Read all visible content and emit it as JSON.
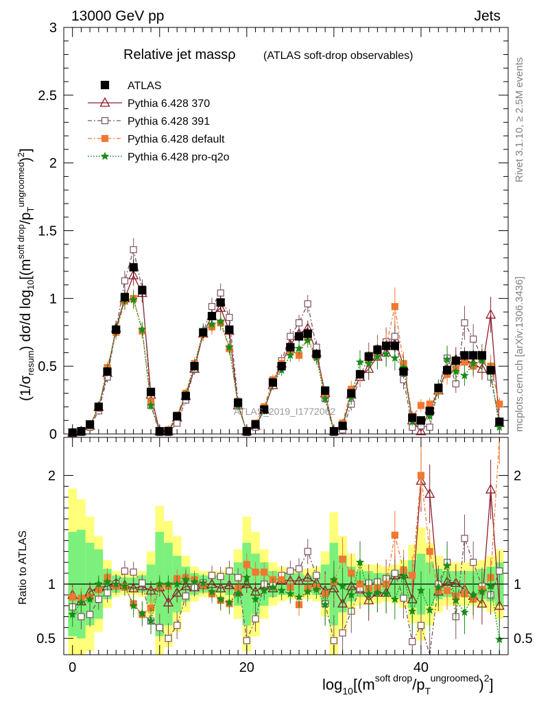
{
  "header": {
    "energy": "13000 GeV pp",
    "category": "Jets",
    "title": "Relative jet massρ",
    "subtitle": "(ATLAS soft-drop observables)",
    "rivet": "Rivet 3.1.10, ≥ 2.5M events",
    "mcplots": "mcplots.cern.ch [arXiv:1306.3436]",
    "watermark": "ATLAS_2019_I1772062"
  },
  "axes": {
    "ylabel_main": "(1/σresum) dσ/d log10[(msoft drop/pTungroomed)2]",
    "ylabel_ratio": "Ratio to ATLAS",
    "xlabel": "log10[(msoft drop/pTungroomed)2]"
  },
  "colors": {
    "ATLAS": "#000000",
    "p370": "#8b1a28",
    "p391": "#7a5060",
    "pdef": "#f07830",
    "pq2o": "#1a8c1a",
    "band_green": "#7cf07c",
    "band_yellow": "#ffff7a"
  },
  "chart_data": [
    {
      "type": "line",
      "panel": "main",
      "xlim": [
        -1,
        50
      ],
      "ylim": [
        0,
        3
      ],
      "yticks": [
        0,
        0.5,
        1,
        1.5,
        2,
        2.5,
        3
      ],
      "x": [
        0,
        1,
        2,
        3,
        4,
        5,
        6,
        7,
        8,
        9,
        10,
        11,
        12,
        13,
        14,
        15,
        16,
        17,
        18,
        19,
        20,
        21,
        22,
        23,
        24,
        25,
        26,
        27,
        28,
        29,
        30,
        31,
        32,
        33,
        34,
        35,
        36,
        37,
        38,
        39,
        40,
        41,
        42,
        43,
        44,
        45,
        46,
        47,
        48,
        49
      ],
      "series": [
        {
          "name": "ATLAS",
          "key": "ATLAS",
          "marker": "square-filled",
          "values": [
            0.01,
            0.02,
            0.07,
            0.2,
            0.46,
            0.77,
            1.01,
            1.23,
            1.06,
            0.31,
            0.02,
            0.02,
            0.13,
            0.28,
            0.5,
            0.75,
            0.87,
            0.97,
            0.77,
            0.23,
            0.02,
            0.07,
            0.18,
            0.38,
            0.5,
            0.64,
            0.72,
            0.74,
            0.59,
            0.32,
            0.02,
            0.06,
            0.3,
            0.44,
            0.57,
            0.62,
            0.65,
            0.65,
            0.46,
            0.12,
            0.1,
            0.17,
            0.34,
            0.47,
            0.54,
            0.58,
            0.58,
            0.58,
            0.47,
            0.09
          ]
        },
        {
          "name": "Pythia 6.428 370",
          "key": "p370",
          "marker": "triangle-open",
          "values": [
            0.01,
            0.02,
            0.06,
            0.2,
            0.45,
            0.78,
            1.0,
            1.17,
            1.04,
            0.29,
            0.02,
            0.02,
            0.12,
            0.28,
            0.48,
            0.74,
            0.87,
            0.93,
            0.76,
            0.21,
            0.02,
            0.06,
            0.18,
            0.36,
            0.52,
            0.66,
            0.74,
            0.78,
            0.6,
            0.3,
            0.02,
            0.06,
            0.29,
            0.42,
            0.48,
            0.57,
            0.6,
            0.7,
            0.5,
            0.1,
            0.02,
            0.18,
            0.32,
            0.48,
            0.55,
            0.55,
            0.52,
            0.48,
            0.88,
            0.08
          ]
        },
        {
          "name": "Pythia 6.428 391",
          "key": "p391",
          "marker": "square-open",
          "values": [
            0.01,
            0.01,
            0.05,
            0.17,
            0.42,
            0.77,
            1.13,
            1.36,
            1.07,
            0.21,
            0.01,
            0.01,
            0.08,
            0.25,
            0.48,
            0.75,
            0.94,
            1.04,
            0.86,
            0.24,
            0.01,
            0.05,
            0.18,
            0.38,
            0.54,
            0.72,
            0.82,
            0.96,
            0.64,
            0.26,
            0.01,
            0.03,
            0.22,
            0.42,
            0.58,
            0.63,
            0.68,
            0.72,
            0.4,
            0.05,
            0.06,
            0.05,
            0.34,
            0.56,
            0.37,
            0.82,
            0.7,
            0.57,
            0.42,
            0.09
          ]
        },
        {
          "name": "Pythia 6.428 default",
          "key": "pdef",
          "marker": "square-filled",
          "values": [
            0.01,
            0.02,
            0.06,
            0.19,
            0.49,
            0.75,
            0.98,
            1.0,
            0.76,
            0.24,
            0.02,
            0.03,
            0.14,
            0.3,
            0.52,
            0.74,
            0.79,
            0.82,
            0.63,
            0.22,
            0.02,
            0.08,
            0.2,
            0.4,
            0.52,
            0.62,
            0.58,
            0.71,
            0.57,
            0.29,
            0.02,
            0.08,
            0.33,
            0.44,
            0.55,
            0.6,
            0.65,
            0.94,
            0.52,
            0.13,
            0.21,
            0.22,
            0.32,
            0.44,
            0.48,
            0.53,
            0.5,
            0.55,
            0.5,
            0.22
          ]
        },
        {
          "name": "Pythia 6.428 pro-q2o",
          "key": "pq2o",
          "marker": "star-filled",
          "values": [
            0.01,
            0.02,
            0.06,
            0.2,
            0.47,
            0.77,
            0.99,
            0.99,
            0.77,
            0.21,
            0.02,
            0.02,
            0.13,
            0.29,
            0.51,
            0.76,
            0.81,
            0.83,
            0.64,
            0.21,
            0.02,
            0.06,
            0.17,
            0.37,
            0.47,
            0.58,
            0.63,
            0.69,
            0.56,
            0.26,
            0.02,
            0.06,
            0.27,
            0.53,
            0.52,
            0.57,
            0.59,
            0.56,
            0.49,
            0.09,
            0.09,
            0.13,
            0.33,
            0.55,
            0.46,
            0.43,
            0.52,
            0.54,
            0.46,
            0.05
          ]
        }
      ]
    },
    {
      "type": "line",
      "panel": "ratio",
      "xlim": [
        -1,
        50
      ],
      "ylim": [
        0.35,
        2.35
      ],
      "yticks": [
        0.5,
        1,
        2
      ],
      "xticks": [
        0,
        20,
        40
      ],
      "x": [
        0,
        1,
        2,
        3,
        4,
        5,
        6,
        7,
        8,
        9,
        10,
        11,
        12,
        13,
        14,
        15,
        16,
        17,
        18,
        19,
        20,
        21,
        22,
        23,
        24,
        25,
        26,
        27,
        28,
        29,
        30,
        31,
        32,
        33,
        34,
        35,
        36,
        37,
        38,
        39,
        40,
        41,
        42,
        43,
        44,
        45,
        46,
        47,
        48,
        49
      ],
      "bands": {
        "green": [
          0.48,
          0.5,
          0.38,
          0.32,
          0.14,
          0.08,
          0.06,
          0.06,
          0.08,
          0.18,
          0.48,
          0.38,
          0.26,
          0.16,
          0.1,
          0.08,
          0.08,
          0.08,
          0.1,
          0.2,
          0.38,
          0.28,
          0.2,
          0.12,
          0.1,
          0.1,
          0.1,
          0.08,
          0.1,
          0.18,
          0.38,
          0.26,
          0.16,
          0.12,
          0.12,
          0.1,
          0.1,
          0.12,
          0.14,
          0.22,
          0.28,
          0.2,
          0.14,
          0.12,
          0.12,
          0.12,
          0.12,
          0.14,
          0.16,
          0.2
        ],
        "yellow": [
          0.88,
          0.78,
          0.62,
          0.44,
          0.22,
          0.12,
          0.1,
          0.1,
          0.12,
          0.3,
          0.72,
          0.58,
          0.44,
          0.26,
          0.16,
          0.12,
          0.12,
          0.12,
          0.16,
          0.32,
          0.62,
          0.48,
          0.32,
          0.2,
          0.16,
          0.14,
          0.14,
          0.14,
          0.16,
          0.3,
          0.66,
          0.44,
          0.28,
          0.2,
          0.18,
          0.18,
          0.16,
          0.18,
          0.22,
          0.36,
          0.52,
          0.38,
          0.26,
          0.2,
          0.2,
          0.2,
          0.2,
          0.22,
          0.26,
          0.32
        ]
      },
      "series": [
        {
          "name": "Pythia 6.428 370",
          "key": "p370",
          "marker": "triangle-open",
          "values": [
            0.9,
            0.84,
            0.93,
            0.97,
            0.98,
            1.01,
            0.99,
            0.96,
            0.98,
            0.94,
            0.97,
            0.83,
            0.92,
            0.98,
            0.97,
            0.99,
            1.0,
            0.96,
            0.99,
            0.93,
            1.0,
            0.93,
            0.99,
            0.96,
            1.04,
            1.03,
            1.03,
            1.06,
            1.01,
            0.94,
            0.96,
            0.82,
            0.98,
            0.95,
            0.85,
            0.92,
            0.92,
            1.08,
            1.09,
            0.86,
            1.95,
            1.83,
            0.93,
            1.02,
            1.01,
            0.95,
            0.89,
            0.82,
            1.87,
            0.8
          ]
        },
        {
          "name": "Pythia 6.428 391",
          "key": "p391",
          "marker": "square-open",
          "values": [
            0.79,
            0.7,
            0.72,
            0.86,
            0.92,
            1.0,
            1.12,
            1.11,
            1.01,
            0.66,
            0.6,
            0.5,
            0.62,
            0.89,
            0.97,
            1.01,
            1.08,
            1.07,
            1.12,
            1.06,
            0.48,
            0.68,
            1.0,
            1.0,
            1.08,
            1.12,
            1.14,
            1.3,
            1.08,
            0.82,
            0.48,
            0.55,
            0.75,
            0.96,
            1.01,
            1.02,
            1.05,
            1.1,
            0.87,
            0.47,
            0.62,
            0.3,
            1.0,
            1.2,
            0.7,
            1.42,
            1.2,
            0.98,
            0.9,
            1.12
          ]
        },
        {
          "name": "Pythia 6.428 default",
          "key": "pdef",
          "marker": "square-filled",
          "values": [
            0.88,
            0.87,
            0.88,
            0.95,
            1.06,
            0.98,
            0.97,
            0.82,
            0.72,
            0.78,
            0.98,
            0.98,
            1.05,
            1.06,
            1.04,
            0.99,
            0.91,
            0.85,
            0.82,
            0.96,
            1.18,
            1.11,
            1.11,
            1.04,
            1.04,
            0.97,
            0.81,
            0.96,
            0.97,
            0.91,
            1.02,
            1.23,
            1.1,
            1.0,
            0.96,
            0.97,
            1.0,
            1.45,
            1.13,
            1.08,
            2.0,
            1.3,
            0.94,
            0.94,
            0.89,
            0.91,
            0.86,
            0.95,
            1.06,
            2.45
          ]
        },
        {
          "name": "Pythia 6.428 pro-q2o",
          "key": "pq2o",
          "marker": "star-filled",
          "values": [
            0.72,
            0.83,
            0.86,
            1.0,
            1.02,
            1.0,
            0.98,
            0.8,
            0.73,
            0.66,
            1.0,
            1.0,
            1.0,
            1.04,
            1.02,
            1.01,
            0.93,
            0.86,
            0.83,
            0.91,
            1.06,
            0.86,
            0.94,
            0.97,
            0.94,
            0.91,
            0.88,
            0.93,
            0.95,
            0.81,
            1.04,
            0.98,
            0.9,
            1.2,
            0.91,
            0.92,
            0.91,
            0.86,
            1.07,
            0.75,
            0.94,
            0.76,
            0.97,
            1.17,
            0.85,
            0.74,
            0.9,
            0.93,
            0.98,
            0.49
          ]
        }
      ]
    }
  ]
}
